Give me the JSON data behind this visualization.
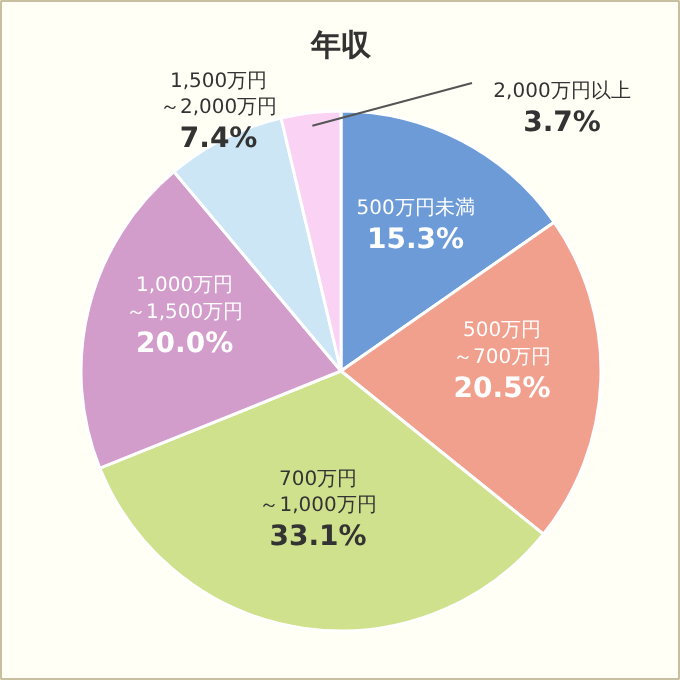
{
  "chart_data": {
    "type": "pie",
    "title": "年収",
    "categories": [
      "500万円未満",
      "500万円～700万円",
      "700万円～1,000万円",
      "1,000万円～1,500万円",
      "1,500万円～2,000万円",
      "2,000万円以上"
    ],
    "value_labels": [
      "15.3%",
      "20.5%",
      "33.1%",
      "20.0%",
      "7.4%",
      "3.7%"
    ],
    "values": [
      15.3,
      20.5,
      33.1,
      20.0,
      7.4,
      3.7
    ],
    "colors": [
      "#6c9bd8",
      "#f2a08e",
      "#cfe18c",
      "#d29ccb",
      "#cde6f5",
      "#fad2f4"
    ]
  }
}
